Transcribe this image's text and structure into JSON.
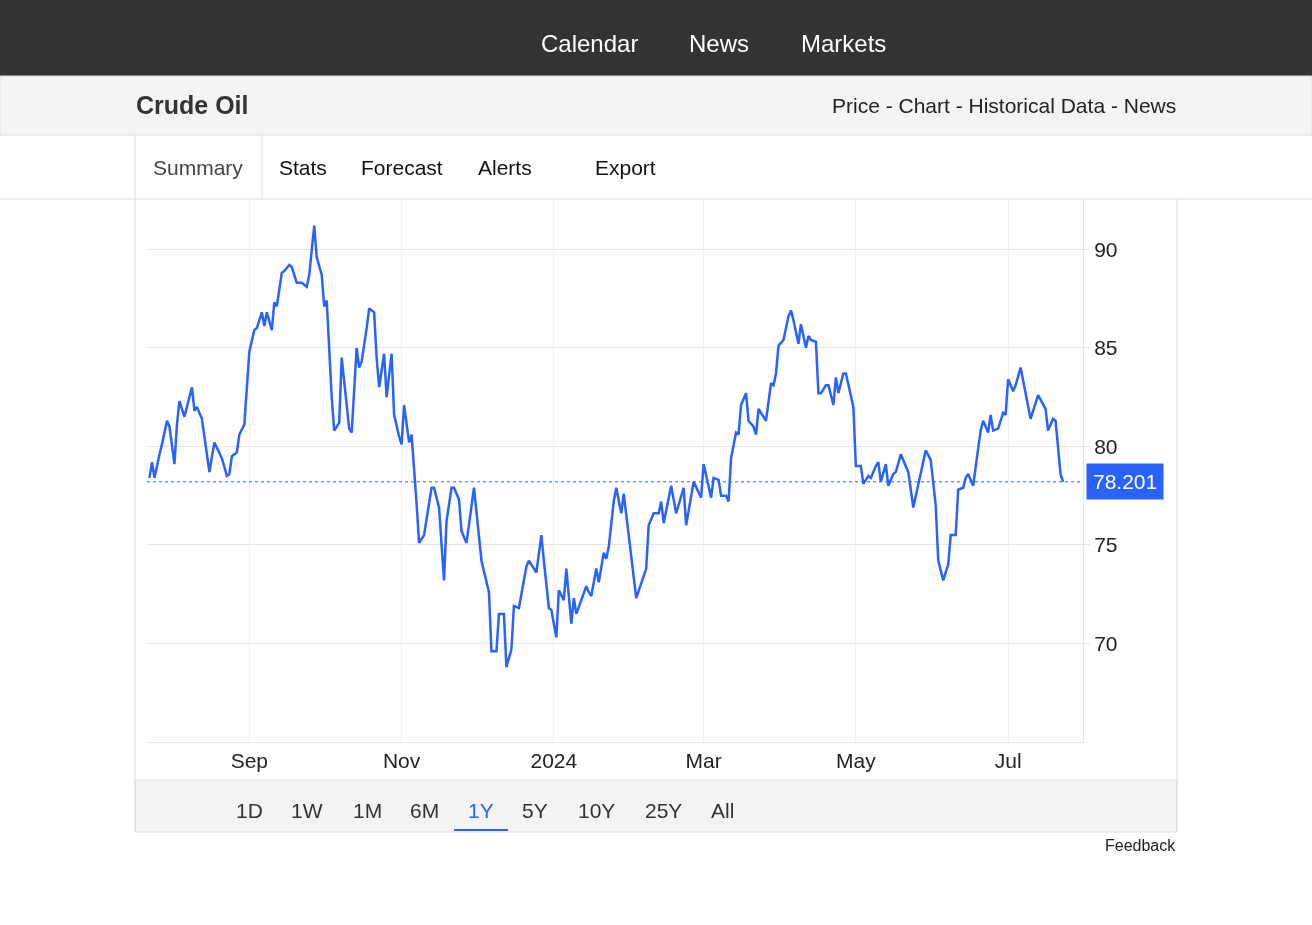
{
  "chart_data": {
    "type": "line",
    "title": "Crude Oil",
    "subtitle": "Price - Chart - Historical Data - News",
    "annotations": [
      "Calendar",
      "News",
      "Markets",
      "Summary",
      "Stats",
      "Forecast",
      "Alerts",
      "Export",
      "1D",
      "1W",
      "1M",
      "6M",
      "1Y",
      "5Y",
      "10Y",
      "25Y",
      "All",
      "Feedback"
    ],
    "x": [
      "2023-07-23",
      "2023-07-24",
      "2023-07-25",
      "2023-07-27",
      "2023-07-28",
      "2023-07-30",
      "2023-07-31",
      "2023-08-02",
      "2023-08-03",
      "2023-08-04",
      "2023-08-06",
      "2023-08-09",
      "2023-08-10",
      "2023-08-11",
      "2023-08-13",
      "2023-08-16",
      "2023-08-18",
      "2023-08-21",
      "2023-08-23",
      "2023-08-24",
      "2023-08-25",
      "2023-08-27",
      "2023-08-28",
      "2023-08-30",
      "2023-09-01",
      "2023-09-03",
      "2023-09-04",
      "2023-09-06",
      "2023-09-07",
      "2023-09-08",
      "2023-09-10",
      "2023-09-11",
      "2023-09-12",
      "2023-09-14",
      "2023-09-15",
      "2023-09-17",
      "2023-09-18",
      "2023-09-20",
      "2023-09-22",
      "2023-09-24",
      "2023-09-25",
      "2023-09-27",
      "2023-09-28",
      "2023-09-30",
      "2023-10-01",
      "2023-10-02",
      "2023-10-04",
      "2023-10-05",
      "2023-10-07",
      "2023-10-08",
      "2023-10-11",
      "2023-10-12",
      "2023-10-14",
      "2023-10-15",
      "2023-10-16",
      "2023-10-18",
      "2023-10-19",
      "2023-10-21",
      "2023-10-22",
      "2023-10-23",
      "2023-10-25",
      "2023-10-26",
      "2023-10-28",
      "2023-10-29",
      "2023-10-31",
      "2023-11-01",
      "2023-11-02",
      "2023-11-04",
      "2023-11-05",
      "2023-11-07",
      "2023-11-08",
      "2023-11-10",
      "2023-11-13",
      "2023-11-14",
      "2023-11-16",
      "2023-11-18",
      "2023-11-19",
      "2023-11-21",
      "2023-11-22",
      "2023-11-24",
      "2023-11-25",
      "2023-11-27",
      "2023-11-30",
      "2023-12-03",
      "2023-12-06",
      "2023-12-07",
      "2023-12-09",
      "2023-12-10",
      "2023-12-12",
      "2023-12-13",
      "2023-12-15",
      "2023-12-16",
      "2023-12-18",
      "2023-12-21",
      "2023-12-22",
      "2023-12-25",
      "2023-12-27",
      "2023-12-28",
      "2023-12-30",
      "2023-12-31",
      "2024-01-02",
      "2024-01-03",
      "2024-01-05",
      "2024-01-06",
      "2024-01-08",
      "2024-01-09",
      "2024-01-10",
      "2024-01-14",
      "2024-01-15",
      "2024-01-16",
      "2024-01-18",
      "2024-01-19",
      "2024-01-21",
      "2024-01-22",
      "2024-01-23",
      "2024-01-25",
      "2024-01-26",
      "2024-01-28",
      "2024-01-29",
      "2024-02-03",
      "2024-02-07",
      "2024-02-08",
      "2024-02-10",
      "2024-02-12",
      "2024-02-13",
      "2024-02-14",
      "2024-02-17",
      "2024-02-19",
      "2024-02-22",
      "2024-02-23",
      "2024-02-26",
      "2024-02-29",
      "2024-03-01",
      "2024-03-04",
      "2024-03-05",
      "2024-03-07",
      "2024-03-08",
      "2024-03-10",
      "2024-03-11",
      "2024-03-12",
      "2024-03-14",
      "2024-03-15",
      "2024-03-16",
      "2024-03-18",
      "2024-03-19",
      "2024-03-21",
      "2024-03-22",
      "2024-03-23",
      "2024-03-26",
      "2024-03-28",
      "2024-03-29",
      "2024-03-30",
      "2024-03-31",
      "2024-04-02",
      "2024-04-04",
      "2024-04-05",
      "2024-04-06",
      "2024-04-08",
      "2024-04-09",
      "2024-04-11",
      "2024-04-12",
      "2024-04-13",
      "2024-04-15",
      "2024-04-16",
      "2024-04-17",
      "2024-04-19",
      "2024-04-20",
      "2024-04-22",
      "2024-04-23",
      "2024-04-24",
      "2024-04-26",
      "2024-04-27",
      "2024-04-30",
      "2024-05-01",
      "2024-05-03",
      "2024-05-04",
      "2024-05-06",
      "2024-05-07",
      "2024-05-09",
      "2024-05-10",
      "2024-05-11",
      "2024-05-13",
      "2024-05-14",
      "2024-05-16",
      "2024-05-17",
      "2024-05-19",
      "2024-05-20",
      "2024-05-22",
      "2024-05-24",
      "2024-05-29",
      "2024-05-31",
      "2024-06-02",
      "2024-06-03",
      "2024-06-05",
      "2024-06-07",
      "2024-06-08",
      "2024-06-10",
      "2024-06-11",
      "2024-06-13",
      "2024-06-14",
      "2024-06-15",
      "2024-06-17",
      "2024-06-19",
      "2024-06-20",
      "2024-06-21",
      "2024-06-23",
      "2024-06-24",
      "2024-06-25",
      "2024-06-27",
      "2024-06-29",
      "2024-06-30",
      "2024-07-01",
      "2024-07-03",
      "2024-07-04",
      "2024-07-06",
      "2024-07-08",
      "2024-07-10",
      "2024-07-13",
      "2024-07-16",
      "2024-07-17",
      "2024-07-19",
      "2024-07-20",
      "2024-07-22",
      "2024-07-23"
    ],
    "series": [
      {
        "color": "#2962ff",
        "values": [
          78.4,
          79.2,
          78.4,
          79.6,
          80.1,
          81.3,
          81.0,
          79.1,
          81.1,
          82.3,
          81.5,
          83.0,
          81.8,
          82.0,
          81.4,
          78.7,
          80.2,
          79.4,
          78.5,
          78.6,
          79.5,
          79.7,
          80.6,
          81.1,
          84.8,
          85.9,
          86.0,
          86.8,
          86.1,
          86.8,
          85.9,
          87.3,
          87.1,
          88.8,
          88.9,
          89.2,
          89.1,
          88.3,
          88.3,
          88.1,
          88.7,
          91.2,
          89.6,
          88.7,
          87.1,
          87.4,
          82.5,
          80.8,
          81.2,
          84.5,
          80.9,
          80.7,
          85.0,
          84.0,
          84.3,
          86.0,
          87.0,
          86.8,
          84.5,
          83.0,
          84.7,
          82.5,
          84.7,
          81.6,
          80.5,
          80.1,
          82.1,
          80.2,
          80.6,
          77.1,
          75.1,
          75.5,
          77.9,
          77.9,
          76.9,
          73.2,
          76.2,
          77.9,
          77.9,
          77.3,
          75.7,
          75.1,
          77.9,
          74.2,
          72.6,
          69.6,
          69.6,
          71.5,
          71.5,
          68.8,
          69.7,
          71.9,
          71.8,
          73.9,
          74.2,
          73.6,
          75.5,
          74.2,
          71.8,
          71.7,
          70.3,
          72.7,
          72.2,
          73.8,
          71.0,
          72.3,
          71.5,
          72.9,
          72.6,
          72.4,
          73.8,
          73.1,
          74.6,
          74.3,
          74.9,
          77.2,
          77.9,
          76.6,
          77.6,
          72.3,
          73.8,
          76.0,
          76.6,
          76.6,
          77.2,
          76.1,
          78.0,
          76.6,
          77.9,
          76.0,
          78.2,
          77.4,
          79.1,
          77.4,
          78.4,
          78.3,
          77.5,
          77.5,
          77.2,
          79.4,
          80.7,
          80.6,
          82.1,
          82.7,
          81.3,
          81.0,
          80.6,
          81.9,
          81.3,
          83.2,
          83.1,
          83.7,
          85.1,
          85.4,
          86.6,
          86.9,
          86.4,
          85.2,
          86.2,
          85.0,
          85.6,
          85.4,
          85.3,
          82.7,
          82.7,
          83.1,
          83.1,
          82.1,
          83.5,
          82.7,
          83.7,
          83.7,
          82.0,
          79.0,
          79.0,
          78.1,
          78.5,
          78.4,
          79.0,
          79.2,
          78.2,
          79.1,
          78.0,
          78.6,
          78.7,
          79.6,
          79.3,
          78.7,
          76.9,
          79.8,
          79.3,
          77.0,
          74.2,
          73.2,
          74.0,
          75.5,
          75.5,
          77.8,
          77.9,
          78.4,
          78.6,
          78.0,
          79.9,
          80.8,
          81.3,
          80.7,
          81.6,
          80.8,
          80.9,
          81.7,
          81.6,
          83.4,
          82.8,
          83.1,
          84.0,
          82.7,
          81.4,
          82.6,
          81.9,
          80.8,
          81.4,
          81.3,
          78.6,
          78.2
        ]
      }
    ],
    "xlim": [
      "2023-07-22",
      "2024-07-31"
    ],
    "xticks": [
      {
        "value": "2023-09-01",
        "label": "Sep"
      },
      {
        "value": "2023-11-01",
        "label": "Nov"
      },
      {
        "value": "2024-01-01",
        "label": "2024"
      },
      {
        "value": "2024-03-01",
        "label": "Mar"
      },
      {
        "value": "2024-05-01",
        "label": "May"
      },
      {
        "value": "2024-07-01",
        "label": "Jul"
      }
    ],
    "ylim": [
      65,
      92.5
    ],
    "yticks": [
      70,
      75,
      80,
      85,
      90
    ],
    "ref_lines": [
      {
        "axis": "y",
        "value": 78.201,
        "label": "78.201",
        "color": "#2962ff",
        "line_style": "dotted"
      }
    ],
    "grid": true,
    "marker": "none",
    "line_style": "solid"
  }
}
